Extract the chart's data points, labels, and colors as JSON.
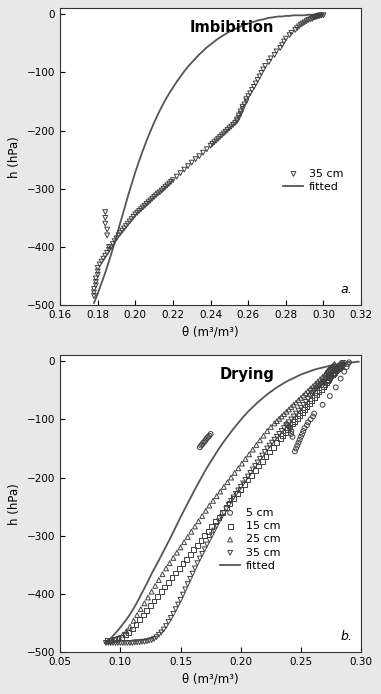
{
  "fig_width": 3.81,
  "fig_height": 6.94,
  "dpi": 100,
  "background_color": "#e8e8e8",
  "plot_bg_color": "#ffffff",
  "subplot_a": {
    "title": "Imbibition",
    "xlabel": "θ (m³/m³)",
    "ylabel": "h (hPa)",
    "xlim": [
      0.16,
      0.32
    ],
    "ylim": [
      -500,
      10
    ],
    "xticks": [
      0.16,
      0.18,
      0.2,
      0.22,
      0.24,
      0.26,
      0.28,
      0.3,
      0.32
    ],
    "yticks": [
      0,
      -100,
      -200,
      -300,
      -400,
      -500
    ],
    "label": "a.",
    "scatter_35cm_theta": [
      0.3,
      0.299,
      0.298,
      0.298,
      0.297,
      0.297,
      0.296,
      0.296,
      0.295,
      0.295,
      0.294,
      0.294,
      0.293,
      0.292,
      0.291,
      0.29,
      0.289,
      0.288,
      0.287,
      0.286,
      0.285,
      0.283,
      0.282,
      0.28,
      0.279,
      0.278,
      0.277,
      0.275,
      0.274,
      0.272,
      0.271,
      0.269,
      0.268,
      0.267,
      0.266,
      0.265,
      0.264,
      0.263,
      0.262,
      0.261,
      0.26,
      0.259,
      0.259,
      0.258,
      0.257,
      0.257,
      0.256,
      0.256,
      0.255,
      0.255,
      0.254,
      0.254,
      0.253,
      0.252,
      0.251,
      0.25,
      0.249,
      0.248,
      0.247,
      0.246,
      0.245,
      0.244,
      0.243,
      0.242,
      0.241,
      0.24,
      0.238,
      0.236,
      0.234,
      0.232,
      0.23,
      0.228,
      0.226,
      0.224,
      0.222,
      0.22,
      0.219,
      0.218,
      0.217,
      0.216,
      0.215,
      0.214,
      0.213,
      0.212,
      0.211,
      0.21,
      0.209,
      0.208,
      0.207,
      0.206,
      0.205,
      0.204,
      0.203,
      0.202,
      0.201,
      0.2,
      0.199,
      0.198,
      0.197,
      0.196,
      0.195,
      0.194,
      0.193,
      0.192,
      0.191,
      0.19,
      0.189,
      0.188,
      0.187,
      0.186,
      0.185,
      0.184,
      0.183,
      0.182,
      0.181,
      0.18,
      0.18,
      0.18,
      0.179,
      0.179,
      0.179,
      0.178,
      0.178,
      0.178,
      0.184,
      0.184,
      0.184,
      0.185,
      0.185,
      0.186
    ],
    "scatter_35cm_h": [
      -2,
      -2,
      -2,
      -3,
      -3,
      -4,
      -4,
      -5,
      -5,
      -6,
      -7,
      -8,
      -9,
      -10,
      -12,
      -14,
      -16,
      -18,
      -21,
      -24,
      -27,
      -32,
      -36,
      -42,
      -47,
      -53,
      -58,
      -64,
      -70,
      -76,
      -82,
      -89,
      -95,
      -101,
      -107,
      -113,
      -119,
      -125,
      -130,
      -136,
      -141,
      -146,
      -150,
      -155,
      -159,
      -163,
      -167,
      -171,
      -174,
      -178,
      -181,
      -184,
      -187,
      -190,
      -193,
      -196,
      -199,
      -202,
      -205,
      -208,
      -211,
      -214,
      -217,
      -220,
      -223,
      -226,
      -232,
      -238,
      -244,
      -249,
      -255,
      -261,
      -267,
      -273,
      -279,
      -285,
      -288,
      -291,
      -294,
      -297,
      -300,
      -303,
      -306,
      -308,
      -311,
      -314,
      -317,
      -320,
      -323,
      -326,
      -329,
      -332,
      -335,
      -338,
      -341,
      -344,
      -348,
      -352,
      -356,
      -360,
      -364,
      -368,
      -372,
      -376,
      -380,
      -385,
      -390,
      -395,
      -400,
      -405,
      -410,
      -415,
      -420,
      -425,
      -430,
      -436,
      -442,
      -448,
      -454,
      -460,
      -466,
      -472,
      -478,
      -484,
      -340,
      -350,
      -360,
      -370,
      -380,
      -400
    ],
    "fitted_theta": [
      0.178,
      0.18,
      0.182,
      0.184,
      0.186,
      0.188,
      0.19,
      0.192,
      0.194,
      0.196,
      0.198,
      0.2,
      0.202,
      0.204,
      0.206,
      0.208,
      0.21,
      0.212,
      0.214,
      0.216,
      0.218,
      0.22,
      0.222,
      0.224,
      0.226,
      0.228,
      0.23,
      0.232,
      0.234,
      0.236,
      0.238,
      0.24,
      0.242,
      0.244,
      0.246,
      0.248,
      0.25,
      0.252,
      0.254,
      0.256,
      0.258,
      0.26,
      0.262,
      0.264,
      0.266,
      0.268,
      0.27,
      0.272,
      0.274,
      0.276,
      0.278,
      0.28,
      0.282,
      0.284,
      0.286,
      0.288,
      0.29,
      0.292,
      0.294,
      0.296,
      0.298,
      0.3
    ],
    "fitted_h": [
      -496,
      -480,
      -462,
      -444,
      -424,
      -403,
      -381,
      -358,
      -336,
      -313,
      -292,
      -271,
      -252,
      -234,
      -217,
      -201,
      -186,
      -172,
      -159,
      -147,
      -136,
      -126,
      -116,
      -107,
      -98,
      -90,
      -83,
      -76,
      -69,
      -63,
      -57,
      -52,
      -47,
      -42,
      -38,
      -34,
      -30,
      -27,
      -24,
      -21,
      -18,
      -16,
      -14,
      -12,
      -10,
      -9,
      -7,
      -6,
      -5,
      -4,
      -4,
      -3,
      -3,
      -2,
      -2,
      -2,
      -2,
      -1,
      -1,
      -1,
      -1,
      -1
    ]
  },
  "subplot_b": {
    "title": "Drying",
    "xlabel": "θ (m³/m³)",
    "ylabel": "h (hPa)",
    "xlim": [
      0.05,
      0.3
    ],
    "ylim": [
      -500,
      10
    ],
    "xticks": [
      0.05,
      0.1,
      0.15,
      0.2,
      0.25,
      0.3
    ],
    "yticks": [
      0,
      -100,
      -200,
      -300,
      -400,
      -500
    ],
    "label": "b.",
    "scatter_5cm_theta": [
      0.29,
      0.289,
      0.288,
      0.286,
      0.283,
      0.279,
      0.274,
      0.268,
      0.261,
      0.26,
      0.258,
      0.256,
      0.255,
      0.253,
      0.252,
      0.251,
      0.25,
      0.249,
      0.248,
      0.247,
      0.246,
      0.245,
      0.243,
      0.242,
      0.242,
      0.241,
      0.24,
      0.239,
      0.238,
      0.175,
      0.174,
      0.173,
      0.172,
      0.171,
      0.17,
      0.169,
      0.168,
      0.167,
      0.166
    ],
    "scatter_5cm_h": [
      -2,
      -5,
      -10,
      -18,
      -30,
      -45,
      -60,
      -75,
      -90,
      -95,
      -100,
      -105,
      -110,
      -115,
      -120,
      -125,
      -130,
      -135,
      -140,
      -145,
      -150,
      -155,
      -130,
      -125,
      -120,
      -115,
      -112,
      -110,
      -108,
      -125,
      -128,
      -130,
      -132,
      -135,
      -138,
      -140,
      -143,
      -145,
      -148
    ],
    "scatter_15cm_theta": [
      0.285,
      0.284,
      0.283,
      0.282,
      0.281,
      0.28,
      0.279,
      0.278,
      0.277,
      0.276,
      0.275,
      0.274,
      0.273,
      0.272,
      0.271,
      0.27,
      0.269,
      0.267,
      0.265,
      0.263,
      0.261,
      0.259,
      0.257,
      0.255,
      0.253,
      0.251,
      0.249,
      0.247,
      0.245,
      0.243,
      0.241,
      0.239,
      0.237,
      0.235,
      0.233,
      0.23,
      0.227,
      0.224,
      0.221,
      0.218,
      0.215,
      0.212,
      0.209,
      0.206,
      0.203,
      0.2,
      0.197,
      0.194,
      0.191,
      0.188,
      0.185,
      0.182,
      0.179,
      0.176,
      0.173,
      0.17,
      0.167,
      0.164,
      0.161,
      0.158,
      0.155,
      0.152,
      0.149,
      0.146,
      0.143,
      0.14,
      0.137,
      0.134,
      0.131,
      0.128,
      0.125,
      0.122,
      0.119,
      0.116,
      0.113,
      0.11,
      0.107,
      0.104,
      0.101,
      0.098,
      0.095,
      0.092,
      0.089
    ],
    "scatter_15cm_h": [
      -5,
      -7,
      -9,
      -11,
      -13,
      -15,
      -17,
      -19,
      -21,
      -23,
      -25,
      -28,
      -31,
      -34,
      -37,
      -40,
      -43,
      -48,
      -53,
      -58,
      -63,
      -68,
      -73,
      -78,
      -83,
      -88,
      -93,
      -98,
      -103,
      -108,
      -113,
      -118,
      -123,
      -128,
      -133,
      -140,
      -148,
      -156,
      -164,
      -172,
      -180,
      -188,
      -196,
      -204,
      -212,
      -220,
      -228,
      -236,
      -244,
      -252,
      -260,
      -268,
      -276,
      -284,
      -292,
      -300,
      -308,
      -316,
      -324,
      -332,
      -340,
      -348,
      -356,
      -364,
      -372,
      -380,
      -388,
      -396,
      -404,
      -412,
      -420,
      -428,
      -436,
      -444,
      -452,
      -460,
      -466,
      -470,
      -474,
      -476,
      -478,
      -479,
      -480
    ],
    "scatter_25cm_theta": [
      0.278,
      0.277,
      0.276,
      0.275,
      0.274,
      0.273,
      0.272,
      0.271,
      0.27,
      0.268,
      0.266,
      0.264,
      0.262,
      0.26,
      0.258,
      0.256,
      0.254,
      0.252,
      0.25,
      0.248,
      0.246,
      0.244,
      0.242,
      0.24,
      0.238,
      0.236,
      0.234,
      0.232,
      0.23,
      0.228,
      0.225,
      0.222,
      0.219,
      0.216,
      0.213,
      0.21,
      0.207,
      0.204,
      0.201,
      0.198,
      0.195,
      0.192,
      0.189,
      0.186,
      0.183,
      0.18,
      0.177,
      0.174,
      0.171,
      0.168,
      0.165,
      0.162,
      0.159,
      0.156,
      0.153,
      0.15,
      0.147,
      0.144,
      0.141,
      0.138,
      0.135,
      0.132,
      0.129,
      0.126,
      0.123,
      0.12,
      0.117,
      0.114,
      0.111,
      0.108,
      0.105,
      0.102,
      0.099,
      0.096,
      0.093,
      0.09
    ],
    "scatter_25cm_h": [
      -5,
      -7,
      -9,
      -11,
      -13,
      -15,
      -17,
      -20,
      -23,
      -27,
      -31,
      -35,
      -39,
      -43,
      -47,
      -51,
      -55,
      -59,
      -63,
      -67,
      -71,
      -75,
      -79,
      -83,
      -87,
      -91,
      -95,
      -99,
      -103,
      -107,
      -113,
      -120,
      -128,
      -136,
      -144,
      -152,
      -160,
      -168,
      -176,
      -184,
      -192,
      -200,
      -208,
      -216,
      -224,
      -232,
      -240,
      -248,
      -257,
      -266,
      -275,
      -284,
      -293,
      -302,
      -311,
      -320,
      -329,
      -338,
      -347,
      -356,
      -366,
      -376,
      -386,
      -396,
      -406,
      -416,
      -426,
      -436,
      -446,
      -456,
      -464,
      -470,
      -475,
      -478,
      -480,
      -481
    ],
    "scatter_35cm_dry_theta": [
      0.285,
      0.284,
      0.283,
      0.282,
      0.281,
      0.28,
      0.279,
      0.278,
      0.277,
      0.276,
      0.275,
      0.274,
      0.273,
      0.272,
      0.271,
      0.27,
      0.269,
      0.268,
      0.267,
      0.266,
      0.265,
      0.264,
      0.263,
      0.262,
      0.261,
      0.26,
      0.259,
      0.258,
      0.256,
      0.254,
      0.252,
      0.25,
      0.248,
      0.246,
      0.244,
      0.242,
      0.24,
      0.238,
      0.236,
      0.234,
      0.232,
      0.23,
      0.228,
      0.226,
      0.224,
      0.222,
      0.22,
      0.218,
      0.216,
      0.214,
      0.212,
      0.21,
      0.208,
      0.206,
      0.204,
      0.202,
      0.2,
      0.198,
      0.196,
      0.194,
      0.192,
      0.19,
      0.188,
      0.186,
      0.184,
      0.182,
      0.18,
      0.178,
      0.176,
      0.174,
      0.172,
      0.17,
      0.168,
      0.166,
      0.164,
      0.162,
      0.16,
      0.158,
      0.156,
      0.154,
      0.152,
      0.15,
      0.148,
      0.146,
      0.144,
      0.142,
      0.14,
      0.138,
      0.136,
      0.134,
      0.132,
      0.13,
      0.128,
      0.126,
      0.124,
      0.122,
      0.12,
      0.118,
      0.116,
      0.114,
      0.112,
      0.11,
      0.108,
      0.106,
      0.104,
      0.102,
      0.1,
      0.098,
      0.096,
      0.094,
      0.092,
      0.09,
      0.088
    ],
    "scatter_35cm_dry_h": [
      -3,
      -5,
      -7,
      -9,
      -11,
      -13,
      -15,
      -17,
      -19,
      -21,
      -23,
      -25,
      -27,
      -29,
      -31,
      -33,
      -35,
      -37,
      -39,
      -41,
      -43,
      -45,
      -47,
      -49,
      -51,
      -54,
      -57,
      -60,
      -65,
      -70,
      -75,
      -80,
      -85,
      -90,
      -95,
      -100,
      -105,
      -110,
      -115,
      -120,
      -125,
      -130,
      -135,
      -140,
      -145,
      -150,
      -156,
      -162,
      -168,
      -174,
      -180,
      -186,
      -192,
      -198,
      -204,
      -210,
      -216,
      -222,
      -228,
      -234,
      -240,
      -247,
      -254,
      -261,
      -268,
      -275,
      -283,
      -291,
      -299,
      -307,
      -315,
      -323,
      -331,
      -339,
      -347,
      -356,
      -365,
      -374,
      -383,
      -392,
      -401,
      -410,
      -418,
      -426,
      -434,
      -441,
      -448,
      -455,
      -461,
      -466,
      -470,
      -474,
      -477,
      -479,
      -480,
      -481,
      -482,
      -482,
      -483,
      -483,
      -483,
      -484,
      -484,
      -484,
      -484,
      -484,
      -484,
      -484,
      -484,
      -484,
      -484,
      -484,
      -484
    ],
    "fitted_dry_theta": [
      0.087,
      0.09,
      0.093,
      0.096,
      0.099,
      0.102,
      0.105,
      0.108,
      0.111,
      0.114,
      0.117,
      0.12,
      0.123,
      0.126,
      0.13,
      0.134,
      0.138,
      0.142,
      0.146,
      0.15,
      0.154,
      0.158,
      0.162,
      0.166,
      0.17,
      0.174,
      0.178,
      0.182,
      0.186,
      0.19,
      0.194,
      0.198,
      0.202,
      0.206,
      0.21,
      0.214,
      0.218,
      0.222,
      0.226,
      0.23,
      0.234,
      0.238,
      0.242,
      0.246,
      0.25,
      0.254,
      0.258,
      0.262,
      0.266,
      0.27,
      0.274,
      0.278,
      0.282,
      0.285,
      0.288,
      0.29,
      0.292,
      0.294,
      0.296,
      0.298
    ],
    "fitted_dry_h": [
      -484,
      -480,
      -474,
      -467,
      -460,
      -452,
      -444,
      -435,
      -425,
      -414,
      -402,
      -390,
      -378,
      -365,
      -350,
      -334,
      -318,
      -302,
      -285,
      -268,
      -252,
      -236,
      -220,
      -205,
      -190,
      -176,
      -163,
      -150,
      -138,
      -127,
      -116,
      -106,
      -96,
      -87,
      -79,
      -71,
      -64,
      -57,
      -51,
      -45,
      -40,
      -35,
      -31,
      -27,
      -23,
      -20,
      -17,
      -14,
      -12,
      -10,
      -8,
      -6,
      -5,
      -4,
      -3,
      -2,
      -2,
      -2,
      -1,
      -1
    ]
  }
}
